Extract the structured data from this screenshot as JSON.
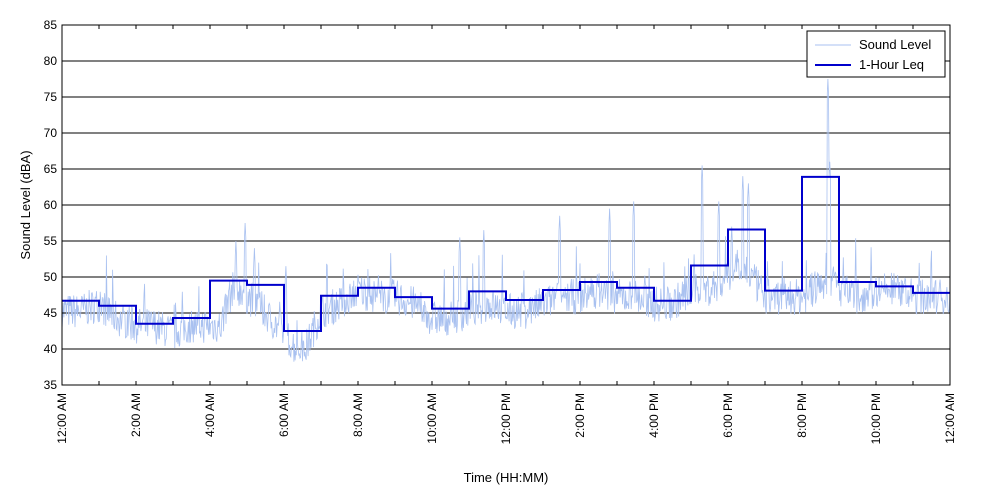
{
  "chart_data": {
    "type": "line",
    "xlabel": "Time (HH:MM)",
    "ylabel": "Sound Level (dBA)",
    "xlim": [
      0,
      24
    ],
    "ylim": [
      35,
      85
    ],
    "yticks": [
      35,
      40,
      45,
      50,
      55,
      60,
      65,
      70,
      75,
      80,
      85
    ],
    "x_tick_hours": [
      0,
      2,
      4,
      6,
      8,
      10,
      12,
      14,
      16,
      18,
      20,
      22,
      24
    ],
    "x_tick_labels": [
      "12:00 AM",
      "2:00 AM",
      "4:00 AM",
      "6:00 AM",
      "8:00 AM",
      "10:00 AM",
      "12:00 PM",
      "2:00 PM",
      "4:00 PM",
      "6:00 PM",
      "8:00 PM",
      "10:00 PM",
      "12:00 AM"
    ],
    "grid": "horizontal",
    "legend_position": "top-right",
    "colors": {
      "sound_level": "#a9c1f0",
      "leq": "#0000cc"
    },
    "series": [
      {
        "name": "Sound Level",
        "kind": "line",
        "profile_hours": [
          0,
          0.5,
          1,
          1.5,
          2,
          2.5,
          3,
          3.5,
          4,
          4.3,
          4.6,
          4.9,
          5,
          5.3,
          5.6,
          6,
          6.3,
          6.6,
          7,
          7.5,
          8,
          8.5,
          9,
          9.5,
          10,
          10.5,
          11,
          11.5,
          12,
          12.5,
          13,
          13.5,
          14,
          14.5,
          15,
          15.5,
          16,
          16.5,
          17,
          17.5,
          18,
          18.3,
          18.6,
          19,
          19.5,
          20,
          20.3,
          20.6,
          20.9,
          21,
          21.5,
          22,
          22.5,
          23,
          23.5,
          24
        ],
        "profile_base": [
          45,
          45,
          46,
          44,
          43,
          43,
          42,
          43,
          43,
          43,
          48,
          48,
          47,
          46,
          44,
          42,
          40,
          40,
          45,
          46,
          48,
          47,
          47,
          46,
          44,
          44,
          45,
          46,
          45,
          45,
          46,
          47,
          47,
          48,
          47,
          47,
          46,
          46,
          48,
          48,
          50,
          52,
          50,
          47,
          47,
          47,
          48,
          49,
          49,
          48,
          47,
          48,
          48,
          47,
          47,
          47
        ],
        "peaks": [
          {
            "hour": 4.7,
            "value": 55
          },
          {
            "hour": 4.95,
            "value": 57.5
          },
          {
            "hour": 5.2,
            "value": 54
          },
          {
            "hour": 6.05,
            "value": 51.5
          },
          {
            "hour": 10.75,
            "value": 55.5
          },
          {
            "hour": 11.4,
            "value": 56.5
          },
          {
            "hour": 13.45,
            "value": 58.5
          },
          {
            "hour": 14.8,
            "value": 59.5
          },
          {
            "hour": 15.45,
            "value": 60.5
          },
          {
            "hour": 17.3,
            "value": 65.5
          },
          {
            "hour": 17.75,
            "value": 60.5
          },
          {
            "hour": 18.1,
            "value": 57
          },
          {
            "hour": 18.4,
            "value": 64
          },
          {
            "hour": 18.55,
            "value": 63
          },
          {
            "hour": 20.7,
            "value": 77.5
          },
          {
            "hour": 20.75,
            "value": 66
          }
        ]
      },
      {
        "name": "1-Hour Leq",
        "kind": "step",
        "hour_start": [
          0,
          1,
          2,
          3,
          4,
          5,
          6,
          7,
          8,
          9,
          10,
          11,
          12,
          13,
          14,
          15,
          16,
          17,
          18,
          19,
          20,
          21,
          22,
          23
        ],
        "values": [
          46.7,
          46.0,
          43.5,
          44.3,
          49.5,
          48.9,
          42.5,
          47.4,
          48.5,
          47.2,
          45.6,
          48.0,
          46.8,
          48.2,
          49.3,
          48.5,
          46.7,
          51.6,
          56.6,
          48.1,
          63.9,
          49.3,
          48.7,
          47.8
        ]
      }
    ]
  }
}
